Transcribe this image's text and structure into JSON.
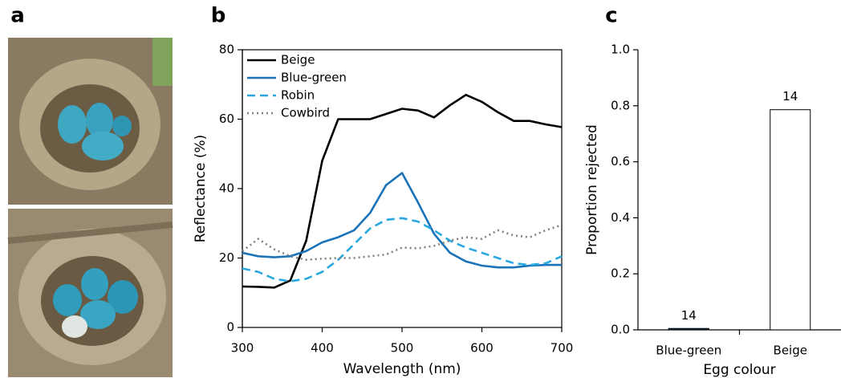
{
  "panel_labels": [
    "a",
    "b",
    "c"
  ],
  "chart_data": [
    {
      "type": "line",
      "x_label": "Wavelength (nm)",
      "y_label": "Reflectance (%)",
      "x": [
        300,
        320,
        340,
        360,
        380,
        400,
        420,
        440,
        460,
        480,
        500,
        520,
        540,
        560,
        580,
        600,
        620,
        640,
        660,
        680,
        700
      ],
      "series": [
        {
          "name": "Beige",
          "color": "#000000",
          "dash": "solid",
          "values": [
            11.8,
            11.7,
            11.5,
            13.5,
            25,
            48,
            60,
            60,
            60,
            61.5,
            63,
            62.5,
            60.5,
            64,
            67,
            65,
            62,
            59.5,
            59.5,
            58.5,
            57.7
          ]
        },
        {
          "name": "Blue-green",
          "color": "#1a73b8",
          "dash": "solid",
          "values": [
            21.5,
            20.5,
            20.2,
            20.5,
            22,
            24.5,
            26,
            28,
            33,
            41,
            44.5,
            36,
            27,
            21.5,
            19,
            17.8,
            17.3,
            17.3,
            17.8,
            18,
            18
          ]
        },
        {
          "name": "Robin",
          "color": "#29a8e0",
          "dash": "dashed",
          "values": [
            17,
            16,
            14,
            13.3,
            14,
            16,
            19.5,
            24,
            28.5,
            31,
            31.5,
            30.5,
            28,
            25,
            23,
            21.5,
            20,
            18.5,
            18,
            18.5,
            20.5
          ]
        },
        {
          "name": "Cowbird",
          "color": "#808080",
          "dash": "dotted",
          "values": [
            22,
            25.5,
            22.5,
            20.5,
            19.5,
            19.8,
            20,
            20,
            20.5,
            21,
            23,
            22.8,
            23.5,
            25,
            26,
            25.5,
            28,
            26.5,
            26,
            28,
            29.5
          ]
        }
      ],
      "xlim": [
        300,
        700
      ],
      "xticks": [
        300,
        400,
        500,
        600,
        700
      ],
      "ylim": [
        0,
        80
      ],
      "yticks": [
        0,
        20,
        40,
        60,
        80
      ],
      "legend": "upper left"
    },
    {
      "type": "bar",
      "x_label": "Egg colour",
      "y_label": "Proportion rejected",
      "categories": [
        "Blue-green",
        "Beige"
      ],
      "values": [
        0.005,
        0.786
      ],
      "colors": [
        "#1f3f6e",
        "#ffffff"
      ],
      "sample_sizes": [
        14,
        14
      ],
      "ylim": [
        0,
        1
      ],
      "yticks": [
        {
          "value": 0,
          "label": "0.0"
        },
        0.2,
        0.4,
        0.6,
        0.8,
        {
          "value": 1,
          "label": "1.0"
        }
      ]
    }
  ]
}
